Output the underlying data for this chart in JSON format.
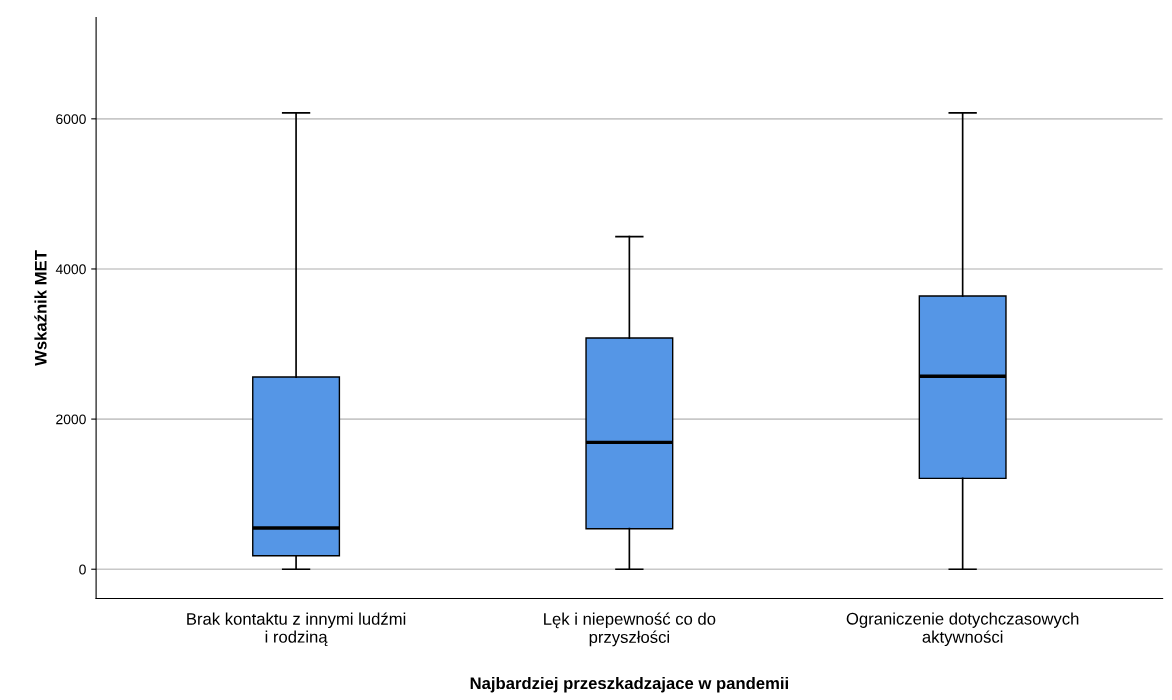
{
  "chart_data": {
    "type": "box",
    "xlabel": "Najbardziej przeszkadzajace w pandemii",
    "ylabel": "Wskaźnik MET",
    "categories": [
      "Brak kontaktu z innymi ludźmi i rodziną",
      "Lęk i niepewność co do przyszłości",
      "Ograniczenie dotychczasowych aktywności"
    ],
    "series": [
      {
        "color": "#5596e6",
        "boxes": [
          {
            "low": 0,
            "q1": 180,
            "median": 550,
            "q3": 2560,
            "high": 6080
          },
          {
            "low": 0,
            "q1": 540,
            "median": 1690,
            "q3": 3080,
            "high": 4430
          },
          {
            "low": 0,
            "q1": 1210,
            "median": 2570,
            "q3": 3640,
            "high": 6080
          }
        ]
      }
    ],
    "ylim": [
      -390,
      7350
    ],
    "yticks": [
      0,
      2000,
      4000,
      6000
    ],
    "grid": "y",
    "legend": false
  }
}
